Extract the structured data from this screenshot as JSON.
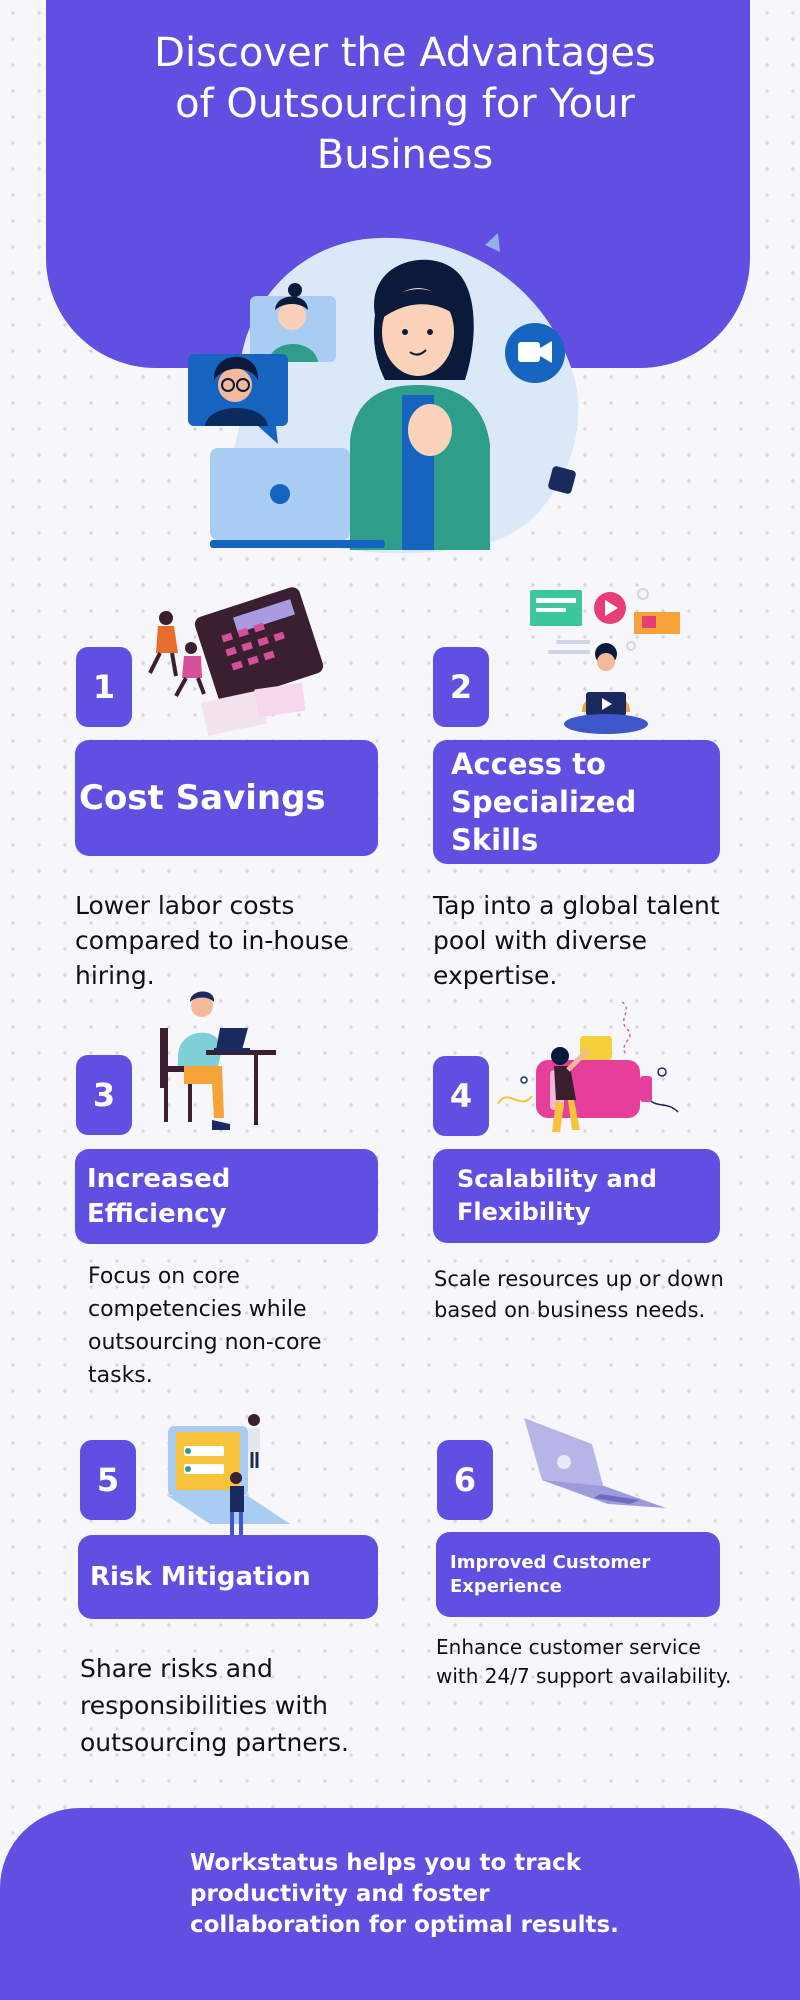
{
  "header": {
    "title": "Discover the Advantages of Outsourcing for Your Business"
  },
  "cards": [
    {
      "number": "1",
      "title": "Cost Savings",
      "description": "Lower labor costs compared to in-house hiring."
    },
    {
      "number": "2",
      "title": "Access to Specialized Skills",
      "description": "Tap into a global talent pool with diverse expertise."
    },
    {
      "number": "3",
      "title": "Increased Efficiency",
      "description": "Focus on core competencies while outsourcing non-core tasks."
    },
    {
      "number": "4",
      "title": "Scalability and Flexibility",
      "description": "Scale resources up or down based on business needs."
    },
    {
      "number": "5",
      "title": "Risk Mitigation",
      "description": "Share risks and responsibilities with outsourcing partners."
    },
    {
      "number": "6",
      "title": "Improved Customer Experience",
      "description": "Enhance customer service with 24/7 support availability."
    }
  ],
  "footer": {
    "text": "Workstatus helps you to track productivity and foster collaboration for optimal results."
  },
  "colors": {
    "primary": "#604fe0",
    "background": "#f7f6fa",
    "text": "#111111",
    "white": "#ffffff"
  },
  "icons": [
    "video-call-illustration",
    "calculator-illustration",
    "online-learning-illustration",
    "desk-worker-illustration",
    "battery-illustration",
    "laptop-id-illustration",
    "laptop-illustration",
    "video-camera-icon"
  ]
}
